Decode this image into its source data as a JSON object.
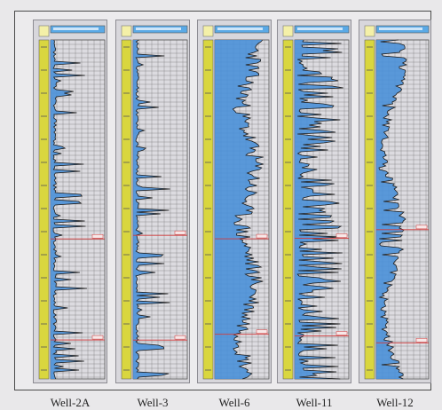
{
  "colors": {
    "depth_track": "#d9d63f",
    "log_fill": "#4a90d8",
    "header_fill": "#5aa9e6",
    "grid": "#555555",
    "marker": "#d23a3a",
    "curve": "#1b1b1b"
  },
  "wells": [
    {
      "name": "Well-2A",
      "style": "spiky",
      "seed": 3
    },
    {
      "name": "Well-3",
      "style": "spiky",
      "seed": 11
    },
    {
      "name": "Well-6",
      "style": "filled",
      "seed": 23
    },
    {
      "name": "Well-11",
      "style": "dense",
      "seed": 37
    },
    {
      "name": "Well-12",
      "style": "filled-right",
      "seed": 51
    }
  ]
}
